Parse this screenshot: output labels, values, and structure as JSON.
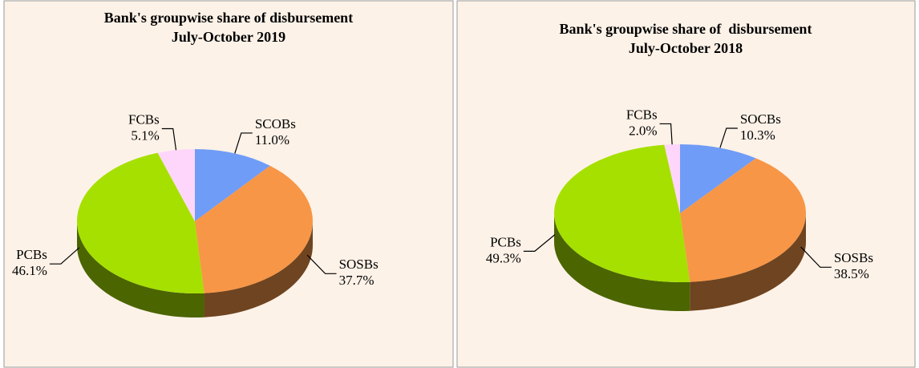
{
  "chart_data": [
    {
      "type": "pie",
      "title": "Bank's groupwise share of disbursement",
      "subtitle": "July-October 2019",
      "categories": [
        "SCOBs",
        "SOSBs",
        "PCBs",
        "FCBs"
      ],
      "values": [
        11.0,
        37.7,
        46.1,
        5.1
      ],
      "value_labels": [
        "11.0%",
        "37.7%",
        "46.1%",
        "5.1%"
      ],
      "colors": [
        "#6f9cf7",
        "#f79646",
        "#a6e000",
        "#ffd6fb"
      ]
    },
    {
      "type": "pie",
      "title": "Bank's groupwise share of  disbursement",
      "subtitle": "July-October 2018",
      "categories": [
        "SOCBs",
        "SOSBs",
        "PCBs",
        "FCBs"
      ],
      "values": [
        10.3,
        38.5,
        49.3,
        2.0
      ],
      "value_labels": [
        "10.3%",
        "38.5%",
        "49.3%",
        "2.0%"
      ],
      "colors": [
        "#6f9cf7",
        "#f79646",
        "#a6e000",
        "#ffd6fb"
      ]
    }
  ]
}
